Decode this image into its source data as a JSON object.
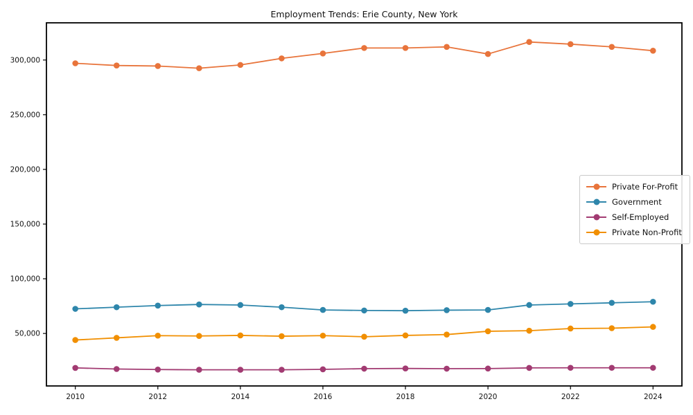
{
  "chart_data": {
    "type": "line",
    "title": "Employment Trends: Erie County, New York",
    "xlabel": "",
    "ylabel": "",
    "x": [
      2010,
      2011,
      2012,
      2013,
      2014,
      2015,
      2016,
      2017,
      2018,
      2019,
      2020,
      2021,
      2022,
      2023,
      2024
    ],
    "xlim": [
      2009.3,
      2024.7
    ],
    "ylim": [
      2000,
      334000
    ],
    "xticks": [
      2010,
      2012,
      2014,
      2016,
      2018,
      2020,
      2022,
      2024
    ],
    "xtick_labels": [
      "2010",
      "2012",
      "2014",
      "2016",
      "2018",
      "2020",
      "2022",
      "2024"
    ],
    "yticks": [
      50000,
      100000,
      150000,
      200000,
      250000,
      300000
    ],
    "ytick_labels": [
      "50,000",
      "100,000",
      "150,000",
      "200,000",
      "250,000",
      "300,000"
    ],
    "grid": false,
    "legend_position": "right-center",
    "axis_color": "#000000",
    "text_color": "#111111",
    "series": [
      {
        "name": "Private For-Profit",
        "color": "#e8743b",
        "values": [
          297000,
          295000,
          294500,
          292500,
          295500,
          301500,
          306000,
          311000,
          311000,
          312000,
          305500,
          316500,
          314500,
          312000,
          308500
        ]
      },
      {
        "name": "Government",
        "color": "#2e86ab",
        "values": [
          72500,
          74000,
          75500,
          76500,
          76000,
          74000,
          71500,
          71000,
          70800,
          71300,
          71500,
          76000,
          77000,
          78000,
          79000
        ]
      },
      {
        "name": "Self-Employed",
        "color": "#a23b72",
        "values": [
          18500,
          17500,
          17000,
          16800,
          16800,
          16800,
          17200,
          17800,
          18000,
          17800,
          17900,
          18500,
          18600,
          18600,
          18600
        ]
      },
      {
        "name": "Private Non-Profit",
        "color": "#f18f01",
        "values": [
          44000,
          46000,
          48000,
          47700,
          48200,
          47500,
          48000,
          47000,
          48200,
          49000,
          52000,
          52500,
          54500,
          54800,
          56000
        ]
      }
    ]
  }
}
